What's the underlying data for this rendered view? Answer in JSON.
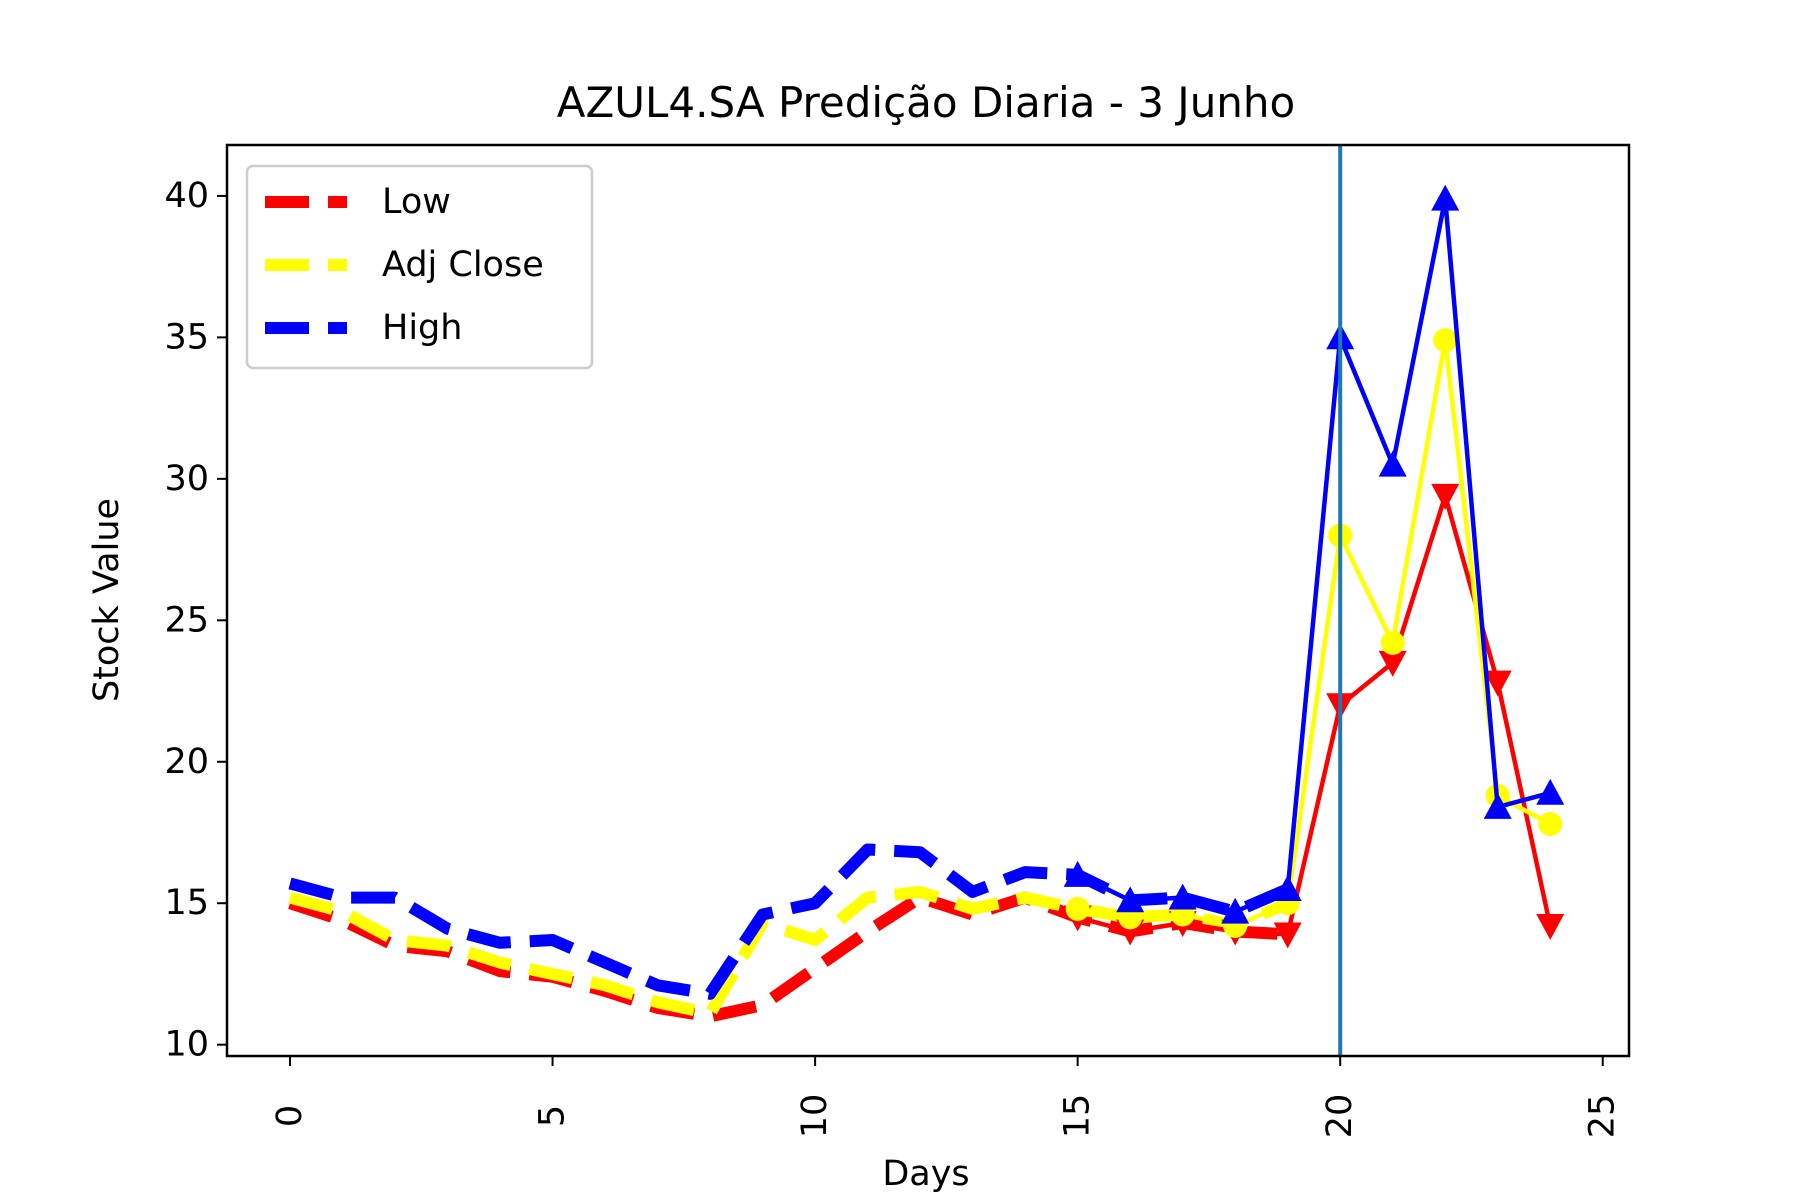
{
  "chart_data": {
    "type": "line",
    "title": "AZUL4.SA Predição Diaria - 3 Junho",
    "xlabel": "Days",
    "ylabel": "Stock Value",
    "xlim": [
      -1.2,
      25.5
    ],
    "ylim": [
      9.6,
      41.8
    ],
    "xticks": [
      0,
      5,
      10,
      15,
      20,
      25
    ],
    "yticks": [
      10,
      15,
      20,
      25,
      30,
      35,
      40
    ],
    "grid": false,
    "legend_position": "upper-left",
    "vline_x": 20,
    "vline_color": "#1f77b4",
    "series": [
      {
        "name": "Low",
        "color": "#ff0000",
        "marker": "triangle-down",
        "history_x": [
          0,
          1,
          2,
          3,
          4,
          5,
          6,
          7,
          8,
          9,
          10,
          11,
          12,
          13,
          14,
          15,
          16,
          17,
          18,
          19
        ],
        "history_y": [
          15.0,
          14.4,
          13.5,
          13.3,
          12.6,
          12.4,
          11.9,
          11.3,
          11.0,
          11.4,
          12.7,
          14.0,
          15.2,
          14.6,
          15.2,
          14.5,
          14.0,
          14.3,
          14.0,
          13.9
        ],
        "predicted_x": [
          15,
          16,
          17,
          18,
          19,
          20,
          21,
          22,
          23,
          24
        ],
        "predicted_y": [
          14.5,
          14.0,
          14.3,
          14.0,
          13.9,
          22.0,
          23.5,
          29.4,
          22.8,
          14.2
        ]
      },
      {
        "name": "Adj Close",
        "color": "#ffff00",
        "marker": "circle",
        "history_x": [
          0,
          1,
          2,
          3,
          4,
          5,
          6,
          7,
          8,
          9,
          10,
          11,
          12,
          13,
          14,
          15,
          16,
          17,
          18,
          19
        ],
        "history_y": [
          15.2,
          14.7,
          13.7,
          13.5,
          12.9,
          12.5,
          12.1,
          11.5,
          11.1,
          14.3,
          13.7,
          15.2,
          15.4,
          14.8,
          15.2,
          14.8,
          14.5,
          14.6,
          14.2,
          15.0
        ],
        "predicted_x": [
          15,
          16,
          17,
          18,
          19,
          20,
          21,
          22,
          23,
          24
        ],
        "predicted_y": [
          14.8,
          14.5,
          14.6,
          14.2,
          15.0,
          28.0,
          24.2,
          34.9,
          18.8,
          17.8
        ]
      },
      {
        "name": "High",
        "color": "#0000ff",
        "marker": "triangle-up",
        "history_x": [
          0,
          1,
          2,
          3,
          4,
          5,
          6,
          7,
          8,
          9,
          10,
          11,
          12,
          13,
          14,
          15,
          16,
          17,
          18,
          19
        ],
        "history_y": [
          15.7,
          15.2,
          15.2,
          14.1,
          13.6,
          13.7,
          12.9,
          12.1,
          11.8,
          14.6,
          15.0,
          16.9,
          16.8,
          15.4,
          16.1,
          16.0,
          15.1,
          15.2,
          14.7,
          15.5
        ],
        "predicted_x": [
          15,
          16,
          17,
          18,
          19,
          20,
          21,
          22,
          23,
          24
        ],
        "predicted_y": [
          16.0,
          15.1,
          15.2,
          14.7,
          15.5,
          35.0,
          30.5,
          39.9,
          18.4,
          18.9
        ]
      }
    ]
  }
}
